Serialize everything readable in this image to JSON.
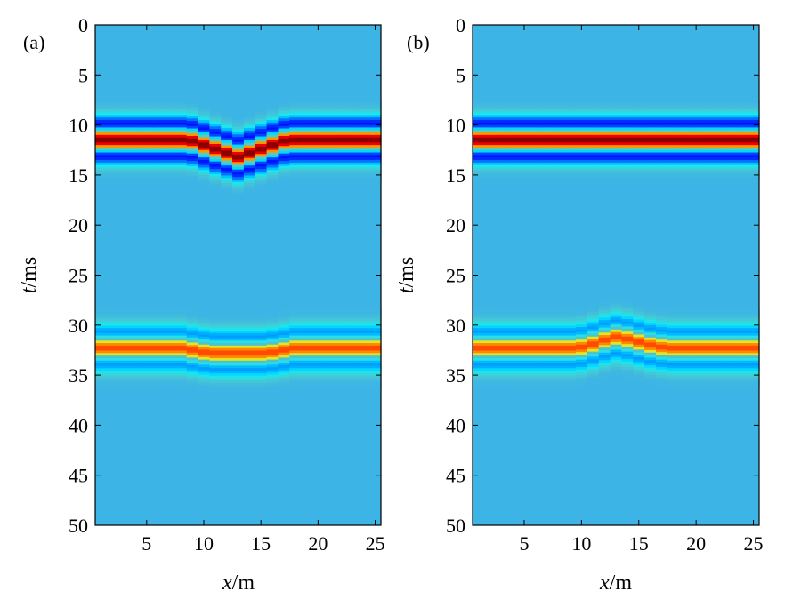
{
  "chart_data": [
    {
      "type": "heatmap",
      "panel_label": "(a)",
      "xlabel": {
        "italic": "x",
        "rest": "/m"
      },
      "ylabel": {
        "italic": "t",
        "rest": "/ms"
      },
      "xlim": [
        0.5,
        25.5
      ],
      "ylim": [
        0,
        50
      ],
      "y_reversed": true,
      "xticks": [
        5,
        10,
        15,
        20,
        25
      ],
      "yticks": [
        0,
        5,
        10,
        15,
        20,
        25,
        30,
        35,
        40,
        45,
        50
      ],
      "x_samples": 25,
      "events": [
        {
          "trace_times_ms": [
            11.5,
            11.5,
            11.5,
            11.5,
            11.5,
            11.5,
            11.5,
            11.5,
            11.6,
            12.0,
            12.4,
            12.8,
            13.2,
            12.8,
            12.4,
            12.0,
            11.6,
            11.5,
            11.5,
            11.5,
            11.5,
            11.5,
            11.5,
            11.5,
            11.5
          ],
          "peak_amplitude": 1.0
        },
        {
          "trace_times_ms": [
            32.3,
            32.3,
            32.3,
            32.3,
            32.3,
            32.3,
            32.3,
            32.3,
            32.5,
            32.7,
            32.8,
            32.8,
            32.8,
            32.8,
            32.8,
            32.7,
            32.5,
            32.3,
            32.3,
            32.3,
            32.3,
            32.3,
            32.3,
            32.3,
            32.3
          ],
          "peak_amplitude": 0.62
        }
      ]
    },
    {
      "type": "heatmap",
      "panel_label": "(b)",
      "xlabel": {
        "italic": "x",
        "rest": "/m"
      },
      "ylabel": {
        "italic": "t",
        "rest": "/ms"
      },
      "xlim": [
        0.5,
        25.5
      ],
      "ylim": [
        0,
        50
      ],
      "y_reversed": true,
      "xticks": [
        5,
        10,
        15,
        20,
        25
      ],
      "yticks": [
        0,
        5,
        10,
        15,
        20,
        25,
        30,
        35,
        40,
        45,
        50
      ],
      "x_samples": 25,
      "events": [
        {
          "trace_times_ms": [
            11.5,
            11.5,
            11.5,
            11.5,
            11.5,
            11.5,
            11.5,
            11.5,
            11.5,
            11.5,
            11.5,
            11.5,
            11.5,
            11.5,
            11.5,
            11.5,
            11.5,
            11.5,
            11.5,
            11.5,
            11.5,
            11.5,
            11.5,
            11.5,
            11.5
          ],
          "peak_amplitude": 1.0
        },
        {
          "trace_times_ms": [
            32.3,
            32.3,
            32.3,
            32.3,
            32.3,
            32.3,
            32.3,
            32.3,
            32.3,
            32.2,
            31.9,
            31.5,
            31.2,
            31.4,
            31.7,
            32.0,
            32.2,
            32.3,
            32.3,
            32.3,
            32.3,
            32.3,
            32.3,
            32.3,
            32.3
          ],
          "peak_amplitude": 0.62
        }
      ]
    }
  ],
  "colors": {
    "background": "#3cb4e6",
    "colormap_stops": [
      [
        0.0,
        "#00008f"
      ],
      [
        0.125,
        "#0000ff"
      ],
      [
        0.375,
        "#00ffff"
      ],
      [
        0.625,
        "#ffff00"
      ],
      [
        0.875,
        "#ff0000"
      ],
      [
        1.0,
        "#800000"
      ]
    ]
  }
}
